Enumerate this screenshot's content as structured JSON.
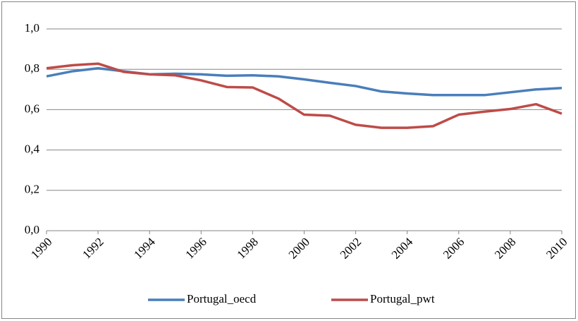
{
  "chart_data": {
    "type": "line",
    "x": [
      1990,
      1991,
      1992,
      1993,
      1994,
      1995,
      1996,
      1997,
      1998,
      1999,
      2000,
      2001,
      2002,
      2003,
      2004,
      2005,
      2006,
      2007,
      2008,
      2009,
      2010
    ],
    "series": [
      {
        "name": "Portugal_oecd",
        "color": "#4a7ebb",
        "values": [
          0.765,
          0.79,
          0.805,
          0.79,
          0.775,
          0.778,
          0.775,
          0.768,
          0.77,
          0.765,
          0.75,
          0.733,
          0.717,
          0.69,
          0.68,
          0.672,
          0.672,
          0.672,
          0.686,
          0.7,
          0.707
        ]
      },
      {
        "name": "Portugal_pwt",
        "color": "#be4b48",
        "values": [
          0.805,
          0.82,
          0.828,
          0.787,
          0.775,
          0.77,
          0.745,
          0.712,
          0.71,
          0.655,
          0.575,
          0.57,
          0.525,
          0.51,
          0.51,
          0.518,
          0.575,
          0.59,
          0.603,
          0.627,
          0.58
        ]
      }
    ],
    "xlim": [
      1990,
      2010
    ],
    "xticks": [
      1990,
      1992,
      1994,
      1996,
      1998,
      2000,
      2002,
      2004,
      2006,
      2008,
      2010
    ],
    "ylim": [
      0,
      1
    ],
    "yticks": [
      {
        "value": 0,
        "label": "0,0"
      },
      {
        "value": 0.2,
        "label": "0,2"
      },
      {
        "value": 0.4,
        "label": "0,4"
      },
      {
        "value": 0.6,
        "label": "0,6"
      },
      {
        "value": 0.8,
        "label": "0,8"
      },
      {
        "value": 1,
        "label": "1,0"
      }
    ],
    "grid": true,
    "legend": "bottom"
  }
}
